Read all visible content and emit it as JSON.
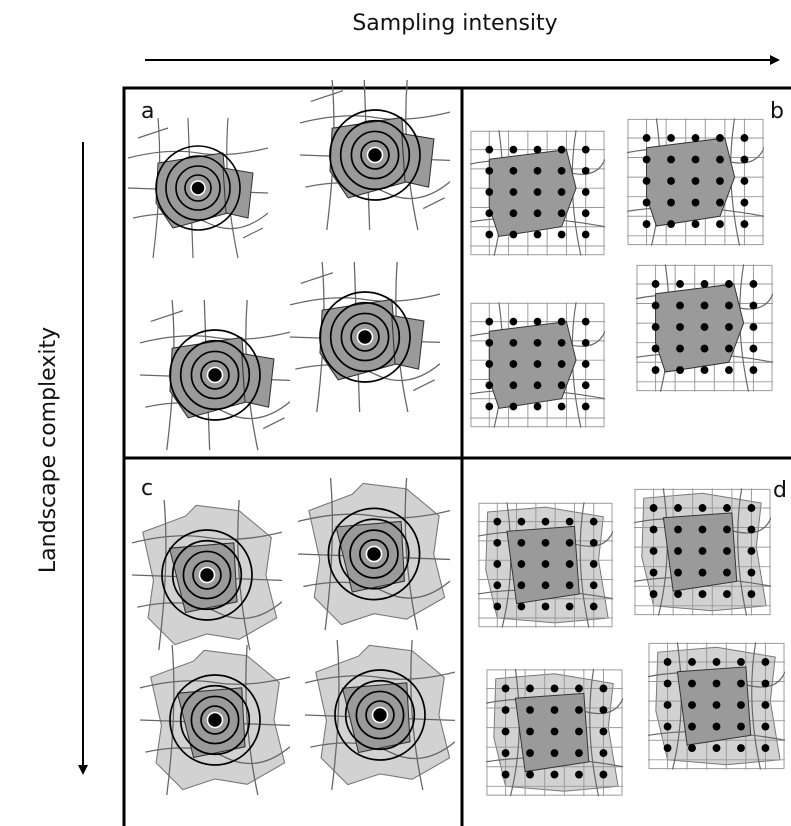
{
  "axes": {
    "top": "Sampling intensity",
    "left": "Landscape complexity"
  },
  "panels": [
    "a",
    "b",
    "c",
    "d"
  ]
}
